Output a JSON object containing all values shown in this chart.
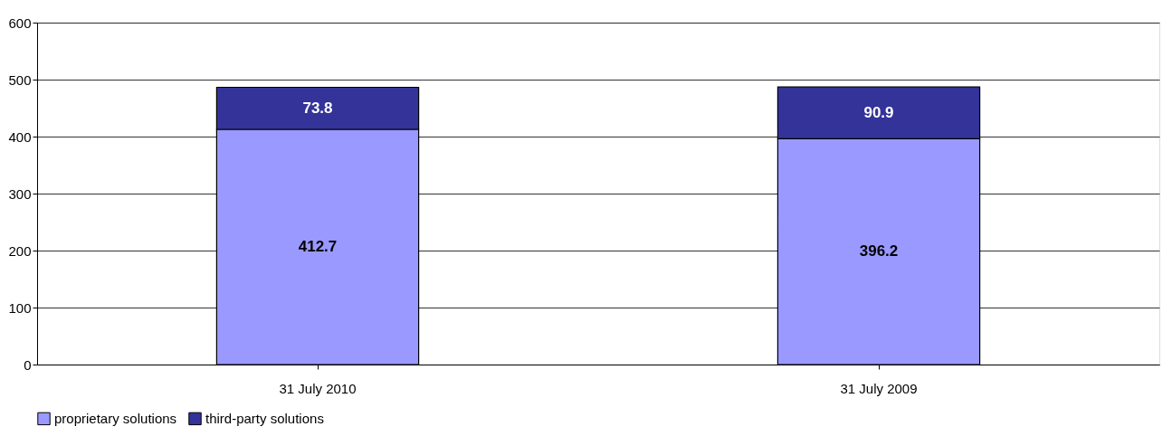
{
  "chart_data": {
    "type": "bar",
    "stacked": true,
    "categories": [
      "31 July 2010",
      "31 July 2009"
    ],
    "series": [
      {
        "name": "proprietary solutions",
        "color": "#9999ff",
        "values": [
          412.7,
          396.2
        ]
      },
      {
        "name": "third-party solutions",
        "color": "#333399",
        "values": [
          73.8,
          90.9
        ]
      }
    ],
    "ylim": [
      0,
      600
    ],
    "yticks": [
      0,
      100,
      200,
      300,
      400,
      500,
      600
    ],
    "grid": "y",
    "legend": "bottom",
    "data_labels": true
  }
}
